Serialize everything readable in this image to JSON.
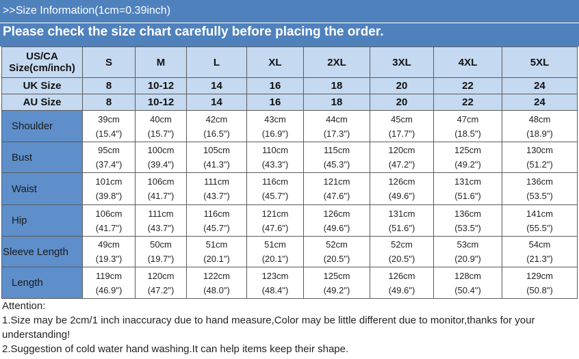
{
  "header": {
    "title": ">>Size Information(1cm=0.39inch)",
    "subtitle": "Please check the size chart carefully before placing the order."
  },
  "table": {
    "header_rows": [
      [
        "US/CA Size(cm/inch)",
        "S",
        "M",
        "L",
        "XL",
        "2XL",
        "3XL",
        "4XL",
        "5XL"
      ],
      [
        "UK Size",
        "8",
        "10-12",
        "14",
        "16",
        "18",
        "20",
        "22",
        "24"
      ],
      [
        "AU Size",
        "8",
        "10-12",
        "14",
        "16",
        "18",
        "20",
        "22",
        "24"
      ]
    ],
    "rows": [
      {
        "label": "Shoulder",
        "cells": [
          [
            "39cm",
            "(15.4\")"
          ],
          [
            "40cm",
            "(15.7\")"
          ],
          [
            "42cm",
            "(16.5\")"
          ],
          [
            "43cm",
            "(16.9\")"
          ],
          [
            "44cm",
            "(17.3\")"
          ],
          [
            "45cm",
            "(17.7\")"
          ],
          [
            "47cm",
            "(18.5\")"
          ],
          [
            "48cm",
            "(18.9\")"
          ]
        ]
      },
      {
        "label": "Bust",
        "cells": [
          [
            "95cm",
            "(37.4\")"
          ],
          [
            "100cm",
            "(39.4\")"
          ],
          [
            "105cm",
            "(41.3\")"
          ],
          [
            "110cm",
            "(43.3\")"
          ],
          [
            "115cm",
            "(45.3\")"
          ],
          [
            "120cm",
            "(47.2\")"
          ],
          [
            "125cm",
            "(49.2\")"
          ],
          [
            "130cm",
            "(51.2\")"
          ]
        ]
      },
      {
        "label": "Waist",
        "cells": [
          [
            "101cm",
            "(39.8\")"
          ],
          [
            "106cm",
            "(41.7\")"
          ],
          [
            "111cm",
            "(43.7\")"
          ],
          [
            "116cm",
            "(45.7\")"
          ],
          [
            "121cm",
            "(47.6\")"
          ],
          [
            "126cm",
            "(49.6\")"
          ],
          [
            "131cm",
            "(51.6\")"
          ],
          [
            "136cm",
            "(53.5\")"
          ]
        ]
      },
      {
        "label": "Hip",
        "cells": [
          [
            "106cm",
            "(41.7\")"
          ],
          [
            "111cm",
            "(43.7\")"
          ],
          [
            "116cm",
            "(45.7\")"
          ],
          [
            "121cm",
            "(47.6\")"
          ],
          [
            "126cm",
            "(49.6\")"
          ],
          [
            "131cm",
            "(51.6\")"
          ],
          [
            "136cm",
            "(53.5\")"
          ],
          [
            "141cm",
            "(55.5\")"
          ]
        ]
      },
      {
        "label": "Sleeve Length",
        "cells": [
          [
            "49cm",
            "(19.3\")"
          ],
          [
            "50cm",
            "(19.7\")"
          ],
          [
            "51cm",
            "(20.1\")"
          ],
          [
            "51cm",
            "(20.1\")"
          ],
          [
            "52cm",
            "(20.5\")"
          ],
          [
            "52cm",
            "(20.5\")"
          ],
          [
            "53cm",
            "(20.9\")"
          ],
          [
            "54cm",
            "(21.3\")"
          ]
        ]
      },
      {
        "label": "Length",
        "cells": [
          [
            "119cm",
            "(46.9\")"
          ],
          [
            "120cm",
            "(47.2\")"
          ],
          [
            "122cm",
            "(48.0\")"
          ],
          [
            "123cm",
            "(48.4\")"
          ],
          [
            "125cm",
            "(49.2\")"
          ],
          [
            "126cm",
            "(49.6\")"
          ],
          [
            "128cm",
            "(50.4\")"
          ],
          [
            "129cm",
            "(50.8\")"
          ]
        ]
      }
    ]
  },
  "notes": [
    "Attention:",
    "1.Size may be 2cm/1 inch inaccuracy due to hand measure,Color may be little different due to monitor,thanks for your understanding!",
    "2.Suggestion of cold water hand washing.It can help items keep their shape."
  ]
}
